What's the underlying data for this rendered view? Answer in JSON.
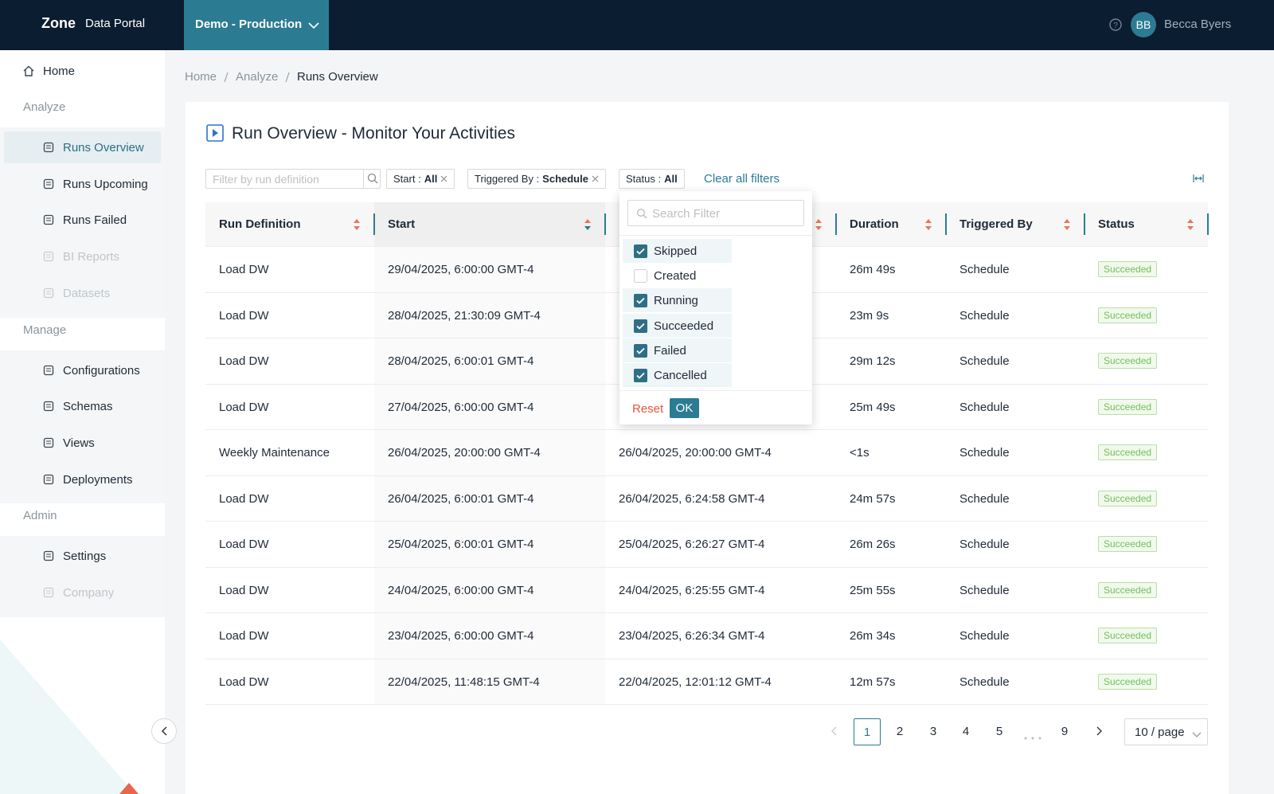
{
  "header": {
    "brand": "Zone",
    "product": "Data Portal",
    "environment": "Demo - Production",
    "user_initials": "BB",
    "user_name": "Becca Byers"
  },
  "sidebar": {
    "home": "Home",
    "sections": [
      {
        "title": "Analyze",
        "items": [
          {
            "label": "Runs Overview",
            "active": true
          },
          {
            "label": "Runs Upcoming"
          },
          {
            "label": "Runs Failed"
          },
          {
            "label": "BI Reports",
            "disabled": true
          },
          {
            "label": "Datasets",
            "disabled": true
          }
        ]
      },
      {
        "title": "Manage",
        "items": [
          {
            "label": "Configurations"
          },
          {
            "label": "Schemas"
          },
          {
            "label": "Views"
          },
          {
            "label": "Deployments"
          }
        ]
      },
      {
        "title": "Admin",
        "items": [
          {
            "label": "Settings"
          },
          {
            "label": "Company",
            "disabled": true
          }
        ]
      }
    ]
  },
  "breadcrumb": [
    "Home",
    "Analyze",
    "Runs Overview"
  ],
  "page_title": "Run Overview - Monitor Your Activities",
  "filters": {
    "search_placeholder": "Filter by run definition",
    "chips": [
      {
        "label": "Start :",
        "value": "All"
      },
      {
        "label": "Triggered By :",
        "value": "Schedule"
      },
      {
        "label": "Status :",
        "value": "All"
      }
    ],
    "clear": "Clear all filters"
  },
  "table": {
    "columns": [
      "Run Definition",
      "Start",
      null,
      "Duration",
      "Triggered By",
      "Status"
    ],
    "rows": [
      [
        "Load DW",
        "29/04/2025, 6:00:00 GMT-4",
        null,
        "26m 49s",
        "Schedule",
        "Succeeded"
      ],
      [
        "Load DW",
        "28/04/2025, 21:30:09 GMT-4",
        null,
        "23m 9s",
        "Schedule",
        "Succeeded"
      ],
      [
        "Load DW",
        "28/04/2025, 6:00:01 GMT-4",
        null,
        "29m 12s",
        "Schedule",
        "Succeeded"
      ],
      [
        "Load DW",
        "27/04/2025, 6:00:00 GMT-4",
        null,
        "25m 49s",
        "Schedule",
        "Succeeded"
      ],
      [
        "Weekly Maintenance",
        "26/04/2025, 20:00:00 GMT-4",
        "26/04/2025, 20:00:00 GMT-4",
        "<1s",
        "Schedule",
        "Succeeded"
      ],
      [
        "Load DW",
        "26/04/2025, 6:00:01 GMT-4",
        "26/04/2025, 6:24:58 GMT-4",
        "24m 57s",
        "Schedule",
        "Succeeded"
      ],
      [
        "Load DW",
        "25/04/2025, 6:00:01 GMT-4",
        "25/04/2025, 6:26:27 GMT-4",
        "26m 26s",
        "Schedule",
        "Succeeded"
      ],
      [
        "Load DW",
        "24/04/2025, 6:00:00 GMT-4",
        "24/04/2025, 6:25:55 GMT-4",
        "25m 55s",
        "Schedule",
        "Succeeded"
      ],
      [
        "Load DW",
        "23/04/2025, 6:00:00 GMT-4",
        "23/04/2025, 6:26:34 GMT-4",
        "26m 34s",
        "Schedule",
        "Succeeded"
      ],
      [
        "Load DW",
        "22/04/2025, 11:48:15 GMT-4",
        "22/04/2025, 12:01:12 GMT-4",
        "12m 57s",
        "Schedule",
        "Succeeded"
      ]
    ]
  },
  "status_dropdown": {
    "search_placeholder": "Search Filter",
    "options": [
      {
        "label": "Skipped",
        "checked": true
      },
      {
        "label": "Created",
        "checked": false
      },
      {
        "label": "Running",
        "checked": true
      },
      {
        "label": "Succeeded",
        "checked": true
      },
      {
        "label": "Failed",
        "checked": true
      },
      {
        "label": "Cancelled",
        "checked": true
      }
    ],
    "reset": "Reset",
    "ok": "OK"
  },
  "pagination": {
    "pages": [
      "1",
      "2",
      "3",
      "4",
      "5",
      "9"
    ],
    "current": "1",
    "page_size": "10 / page"
  }
}
